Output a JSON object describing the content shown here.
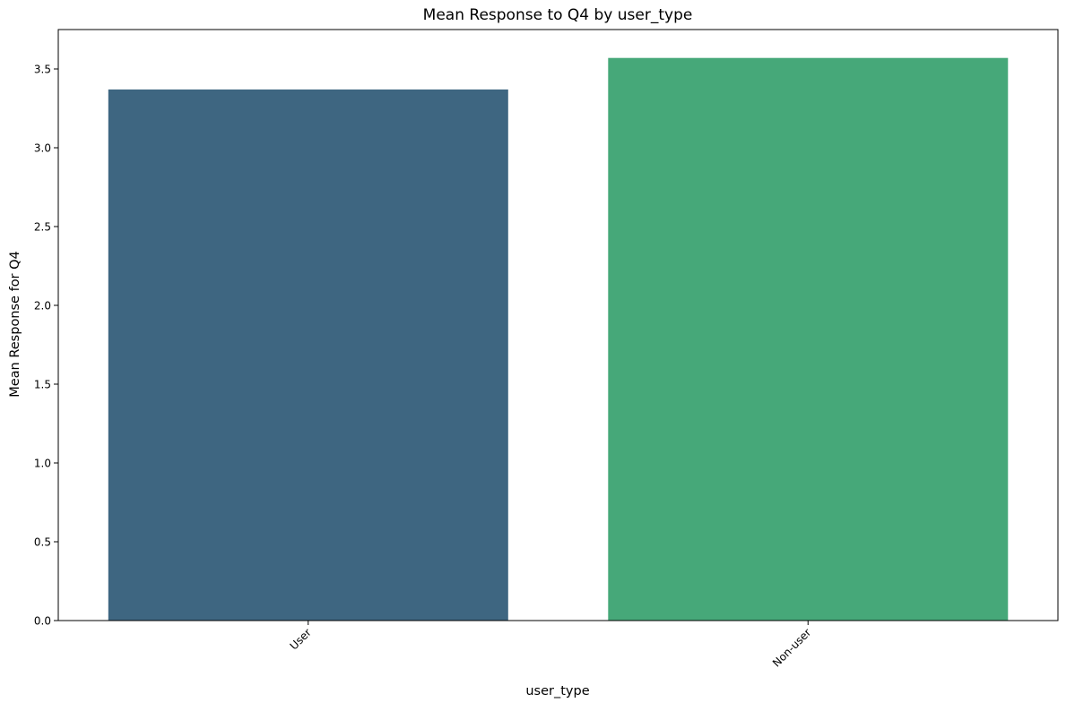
{
  "chart_data": {
    "type": "bar",
    "title": "Mean Response to Q4 by user_type",
    "xlabel": "user_type",
    "ylabel": "Mean Response for Q4",
    "categories": [
      "User",
      "Non-user"
    ],
    "values": [
      3.37,
      3.57
    ],
    "colors": [
      "#3e6681",
      "#46a879"
    ],
    "ylim": [
      0,
      3.75
    ],
    "yticks": [
      "0.0",
      "0.5",
      "1.0",
      "1.5",
      "2.0",
      "2.5",
      "3.0",
      "3.5"
    ],
    "grid": false,
    "legend": "none"
  }
}
